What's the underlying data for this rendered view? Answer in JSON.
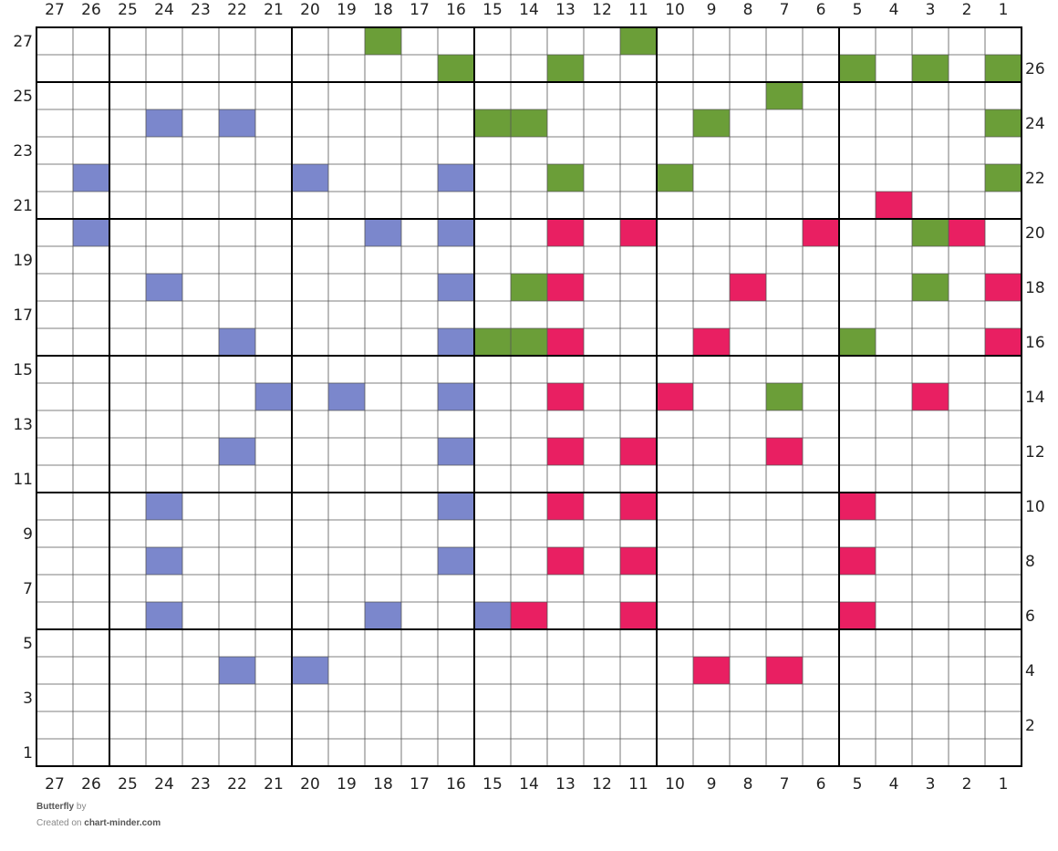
{
  "chart_data": {
    "type": "heatmap",
    "columns": 27,
    "rows": 27,
    "column_numbers": [
      "27",
      "26",
      "25",
      "24",
      "23",
      "22",
      "21",
      "20",
      "19",
      "18",
      "17",
      "16",
      "15",
      "14",
      "13",
      "12",
      "11",
      "10",
      "9",
      "8",
      "7",
      "6",
      "5",
      "4",
      "3",
      "2",
      "1"
    ],
    "major_grid_every": 5,
    "colors": {
      "green": "#6b9e38",
      "blue": "#7b87cc",
      "pink": "#e91f62",
      "empty": "#ffffff",
      "grid": "#555555",
      "major_grid": "#000000"
    },
    "cells": [
      {
        "row": 27,
        "cols": [
          {
            "col": 18,
            "color": "green"
          },
          {
            "col": 11,
            "color": "green"
          }
        ]
      },
      {
        "row": 26,
        "cols": [
          {
            "col": 16,
            "color": "green"
          },
          {
            "col": 13,
            "color": "green"
          },
          {
            "col": 5,
            "color": "green"
          },
          {
            "col": 3,
            "color": "green"
          },
          {
            "col": 1,
            "color": "green"
          }
        ]
      },
      {
        "row": 25,
        "cols": [
          {
            "col": 7,
            "color": "green"
          }
        ]
      },
      {
        "row": 24,
        "cols": [
          {
            "col": 24,
            "color": "blue"
          },
          {
            "col": 22,
            "color": "blue"
          },
          {
            "col": 15,
            "color": "green"
          },
          {
            "col": 14,
            "color": "green"
          },
          {
            "col": 9,
            "color": "green"
          },
          {
            "col": 1,
            "color": "green"
          }
        ]
      },
      {
        "row": 22,
        "cols": [
          {
            "col": 26,
            "color": "blue"
          },
          {
            "col": 20,
            "color": "blue"
          },
          {
            "col": 16,
            "color": "blue"
          },
          {
            "col": 13,
            "color": "green"
          },
          {
            "col": 10,
            "color": "green"
          },
          {
            "col": 1,
            "color": "green"
          }
        ]
      },
      {
        "row": 21,
        "cols": [
          {
            "col": 4,
            "color": "pink"
          }
        ]
      },
      {
        "row": 20,
        "cols": [
          {
            "col": 26,
            "color": "blue"
          },
          {
            "col": 18,
            "color": "blue"
          },
          {
            "col": 16,
            "color": "blue"
          },
          {
            "col": 13,
            "color": "pink"
          },
          {
            "col": 11,
            "color": "pink"
          },
          {
            "col": 6,
            "color": "pink"
          },
          {
            "col": 3,
            "color": "green"
          },
          {
            "col": 2,
            "color": "pink"
          }
        ]
      },
      {
        "row": 18,
        "cols": [
          {
            "col": 24,
            "color": "blue"
          },
          {
            "col": 16,
            "color": "blue"
          },
          {
            "col": 14,
            "color": "green"
          },
          {
            "col": 13,
            "color": "pink"
          },
          {
            "col": 8,
            "color": "pink"
          },
          {
            "col": 3,
            "color": "green"
          },
          {
            "col": 1,
            "color": "pink"
          }
        ]
      },
      {
        "row": 16,
        "cols": [
          {
            "col": 22,
            "color": "blue"
          },
          {
            "col": 16,
            "color": "blue"
          },
          {
            "col": 15,
            "color": "green"
          },
          {
            "col": 14,
            "color": "green"
          },
          {
            "col": 13,
            "color": "pink"
          },
          {
            "col": 9,
            "color": "pink"
          },
          {
            "col": 5,
            "color": "green"
          },
          {
            "col": 1,
            "color": "pink"
          }
        ]
      },
      {
        "row": 14,
        "cols": [
          {
            "col": 21,
            "color": "blue"
          },
          {
            "col": 19,
            "color": "blue"
          },
          {
            "col": 16,
            "color": "blue"
          },
          {
            "col": 13,
            "color": "pink"
          },
          {
            "col": 10,
            "color": "pink"
          },
          {
            "col": 7,
            "color": "green"
          },
          {
            "col": 3,
            "color": "pink"
          }
        ]
      },
      {
        "row": 12,
        "cols": [
          {
            "col": 22,
            "color": "blue"
          },
          {
            "col": 16,
            "color": "blue"
          },
          {
            "col": 13,
            "color": "pink"
          },
          {
            "col": 11,
            "color": "pink"
          },
          {
            "col": 7,
            "color": "pink"
          }
        ]
      },
      {
        "row": 10,
        "cols": [
          {
            "col": 24,
            "color": "blue"
          },
          {
            "col": 16,
            "color": "blue"
          },
          {
            "col": 13,
            "color": "pink"
          },
          {
            "col": 11,
            "color": "pink"
          },
          {
            "col": 5,
            "color": "pink"
          }
        ]
      },
      {
        "row": 8,
        "cols": [
          {
            "col": 24,
            "color": "blue"
          },
          {
            "col": 16,
            "color": "blue"
          },
          {
            "col": 13,
            "color": "pink"
          },
          {
            "col": 11,
            "color": "pink"
          },
          {
            "col": 5,
            "color": "pink"
          }
        ]
      },
      {
        "row": 6,
        "cols": [
          {
            "col": 24,
            "color": "blue"
          },
          {
            "col": 18,
            "color": "blue"
          },
          {
            "col": 15,
            "color": "blue"
          },
          {
            "col": 14,
            "color": "pink"
          },
          {
            "col": 11,
            "color": "pink"
          },
          {
            "col": 5,
            "color": "pink"
          }
        ]
      },
      {
        "row": 4,
        "cols": [
          {
            "col": 22,
            "color": "blue"
          },
          {
            "col": 20,
            "color": "blue"
          },
          {
            "col": 9,
            "color": "pink"
          },
          {
            "col": 7,
            "color": "pink"
          }
        ]
      }
    ]
  },
  "footer": {
    "title": "Butterfly",
    "by": "by",
    "created_on": "Created on",
    "site": "chart-minder.com"
  }
}
